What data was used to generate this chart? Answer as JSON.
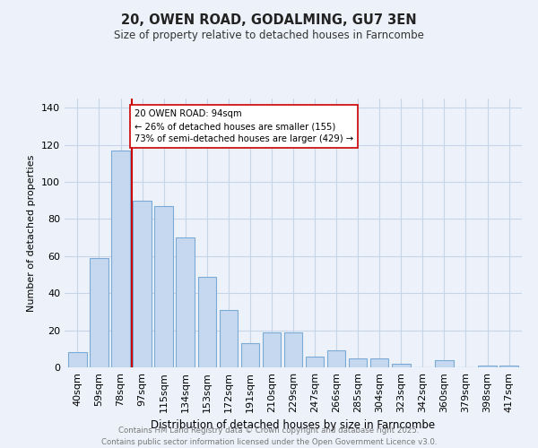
{
  "title": "20, OWEN ROAD, GODALMING, GU7 3EN",
  "subtitle": "Size of property relative to detached houses in Farncombe",
  "xlabel": "Distribution of detached houses by size in Farncombe",
  "ylabel": "Number of detached properties",
  "categories": [
    "40sqm",
    "59sqm",
    "78sqm",
    "97sqm",
    "115sqm",
    "134sqm",
    "153sqm",
    "172sqm",
    "191sqm",
    "210sqm",
    "229sqm",
    "247sqm",
    "266sqm",
    "285sqm",
    "304sqm",
    "323sqm",
    "342sqm",
    "360sqm",
    "379sqm",
    "398sqm",
    "417sqm"
  ],
  "values": [
    8,
    59,
    117,
    90,
    87,
    70,
    49,
    31,
    13,
    19,
    19,
    6,
    9,
    5,
    5,
    2,
    0,
    4,
    0,
    1,
    1
  ],
  "bar_color": "#c5d8f0",
  "bar_edge_color": "#7baad4",
  "vline_color": "#cc0000",
  "annotation_text": "20 OWEN ROAD: 94sqm\n← 26% of detached houses are smaller (155)\n73% of semi-detached houses are larger (429) →",
  "annotation_box_color": "#ffffff",
  "annotation_box_edge": "#cc0000",
  "ylim": [
    0,
    145
  ],
  "yticks": [
    0,
    20,
    40,
    60,
    80,
    100,
    120,
    140
  ],
  "grid_color": "#c8d4e8",
  "background_color": "#edf2fa",
  "footer_line1": "Contains HM Land Registry data © Crown copyright and database right 2025.",
  "footer_line2": "Contains public sector information licensed under the Open Government Licence v3.0."
}
